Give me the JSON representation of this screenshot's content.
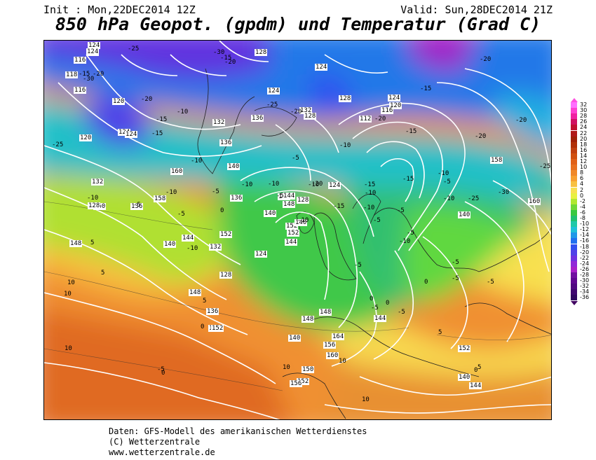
{
  "header": {
    "init": "Init : Mon,22DEC2014 12Z",
    "valid": "Valid: Sun,28DEC2014 21Z",
    "title": "850 hPa Geopot. (gpdm) und Temperatur (Grad C)"
  },
  "legend": {
    "values": [
      "32",
      "30",
      "28",
      "26",
      "24",
      "22",
      "20",
      "18",
      "16",
      "14",
      "12",
      "10",
      "8",
      "6",
      "4",
      "2",
      "0",
      "-2",
      "-4",
      "-6",
      "-8",
      "-10",
      "-12",
      "-14",
      "-16",
      "-18",
      "-20",
      "-22",
      "-24",
      "-26",
      "-28",
      "-30",
      "-32",
      "-34",
      "-36"
    ],
    "colors": [
      "#ff70ff",
      "#ff40d0",
      "#f020a0",
      "#d01060",
      "#c01030",
      "#b01818",
      "#a02008",
      "#b03008",
      "#c04010",
      "#d05010",
      "#e06018",
      "#e87020",
      "#f08828",
      "#f8a030",
      "#f8c040",
      "#f8e050",
      "#e8f040",
      "#b0e830",
      "#70d838",
      "#38c840",
      "#20c070",
      "#20c8a8",
      "#20c0d8",
      "#2098e8",
      "#2070f0",
      "#3050f0",
      "#5040e8",
      "#7030e0",
      "#9028d8",
      "#a820c8",
      "#7010a0",
      "#600890",
      "#500880",
      "#400870",
      "#300860"
    ],
    "arrow_top_color": "#ff50e0",
    "arrow_bottom_color": "#400060"
  },
  "isobar_labels": [
    "124",
    "120",
    "128",
    "116",
    "118",
    "116",
    "124",
    "132",
    "136",
    "136",
    "124",
    "120",
    "124",
    "132",
    "124",
    "128",
    "128",
    "124",
    "120",
    "116",
    "112",
    "124",
    "128",
    "132",
    "136",
    "140",
    "140",
    "144",
    "148",
    "152",
    "152",
    "140",
    "144",
    "148",
    "148",
    "150",
    "152",
    "160",
    "158",
    "140",
    "152",
    "124",
    "128",
    "132",
    "136",
    "136",
    "140",
    "144",
    "152",
    "156",
    "160",
    "148",
    "128",
    "132",
    "136",
    "140",
    "144",
    "148",
    "152",
    "156",
    "160",
    "164",
    "124",
    "120",
    "140",
    "158",
    "160",
    "144"
  ],
  "temperature_labels": [
    "-25",
    "-20",
    "-20",
    "-25",
    "-30",
    "-25",
    "-20",
    "-15",
    "-15",
    "-10",
    "-15",
    "-10",
    "-20",
    "-15",
    "-15",
    "-10",
    "-20",
    "-25",
    "-30",
    "-20",
    "-25",
    "-20",
    "-15",
    "-15",
    "-10",
    "-10",
    "-5",
    "-10",
    "-5",
    "-10",
    "-5",
    "-10",
    "-5",
    "-10",
    "-10",
    "-5",
    "0",
    "-5",
    "-10",
    "-15",
    "-10",
    "-20",
    "-15",
    "-10",
    "-5",
    "-10",
    "-5",
    "0",
    "-5",
    "-5",
    "-5",
    "-5",
    "0",
    "-5",
    "0",
    "5",
    "10",
    "10",
    "10",
    "10",
    "5",
    "0",
    "5",
    "10",
    "5",
    "10",
    "0",
    "-5",
    "0",
    "5",
    "-10",
    "-5",
    "-5",
    "-20",
    "-30"
  ],
  "footer": {
    "line1": "Daten: GFS-Modell des amerikanischen Wetterdienstes",
    "line2": "(C) Wetterzentrale",
    "line3": "www.wetterzentrale.de"
  }
}
